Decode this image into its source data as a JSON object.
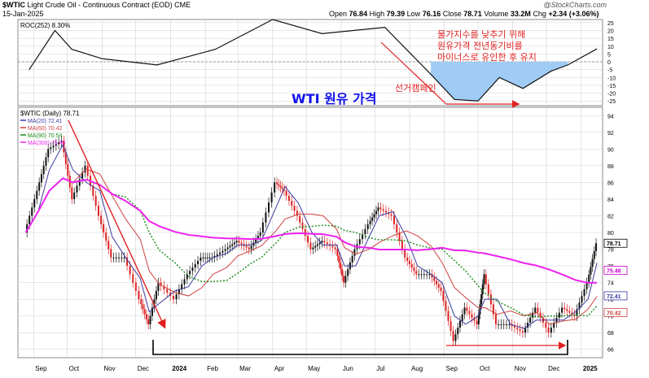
{
  "header": {
    "symbol": "$WTIC",
    "description": "Light Crude Oil - Continuous Contract (EOD) CME",
    "date": "15-Jan-2025",
    "ohlc": {
      "open_label": "Open",
      "open": "76.84",
      "high_label": "High",
      "high": "79.39",
      "low_label": "Low",
      "low": "76.16",
      "close_label": "Close",
      "close": "78.71",
      "volume_label": "Volume",
      "volume": "33.2M",
      "chg_label": "Chg",
      "chg": "+2.34 (+3.06%)"
    },
    "watermark": "@StockCharts.com"
  },
  "colors": {
    "price": "#111111",
    "up": "#111111",
    "down": "#dd2222",
    "ma20": "#3a3aa0",
    "ma60": "#d04040",
    "ma90": "#1a8a1a",
    "ma300": "#ee22ee",
    "roc": "#111111",
    "roc_fill": "#9fcbf5",
    "annotation_red": "#e02020",
    "annotation_blue": "#1010ee",
    "grid": "#d0d0d0"
  },
  "chart_data": [
    {
      "type": "line",
      "title": "ROC(252) 8.30%",
      "series": [
        {
          "name": "ROC(252)",
          "last_value": "8.30%",
          "x": [
            "2024-08-20",
            "2024-09-10",
            "2024-10-01",
            "2024-10-20",
            "2024-11-10",
            "2024-12-05",
            "2024-12-20",
            "2025-01-15",
            "2024-07-10",
            "2024-05-15",
            "2024-04-01",
            "2024-02-10",
            "2023-12-20",
            "2023-11-01",
            "2023-10-05",
            "2023-09-20",
            "2023-08-28"
          ],
          "y": [
            -8,
            -24,
            -25,
            -10,
            -17,
            -6,
            -2,
            8.3,
            22,
            18,
            27,
            8,
            -2,
            2,
            8,
            20,
            -5
          ]
        }
      ],
      "ylim": [
        -28,
        27
      ],
      "yticks": [
        "25",
        "20",
        "15",
        "10",
        "5",
        "0",
        "-5",
        "-10",
        "-15",
        "-20",
        "-25"
      ],
      "yticks_visible": [
        "25",
        "20",
        "15",
        "10",
        "5",
        "0",
        "-5",
        "-10",
        "-15",
        "-20",
        "-25"
      ]
    },
    {
      "type": "candlestick",
      "title": "$WTIC (Daily) 78.71",
      "legend": [
        {
          "label": "MA(20) 72.41",
          "color": "#3a3aa0"
        },
        {
          "label": "MA(60) 70.42",
          "color": "#d04040"
        },
        {
          "label": "MA(90) 70.54",
          "color": "#1a8a1a"
        },
        {
          "label": "MA(300) 75.48",
          "color": "#ee22ee"
        }
      ],
      "ylim": [
        65,
        95
      ],
      "yticks": [
        "94",
        "92",
        "90",
        "88",
        "86",
        "84",
        "82",
        "80",
        "78",
        "76",
        "74",
        "72",
        "70",
        "68",
        "66"
      ],
      "price_tags": [
        {
          "label": "78.71",
          "value": 78.71,
          "bg": "#ffffff",
          "fg": "#000000"
        },
        {
          "label": "75.48",
          "value": 75.48,
          "bg": "#ffffff",
          "fg": "#cc00cc"
        },
        {
          "label": "72.41",
          "value": 72.41,
          "bg": "#ffffff",
          "fg": "#3a3aa0"
        },
        {
          "label": "70.42",
          "value": 70.42,
          "bg": "#ffffff",
          "fg": "#d04040"
        }
      ],
      "xlabels": [
        "Sep",
        "Oct",
        "Nov",
        "Dec",
        "2024",
        "Feb",
        "Mar",
        "Apr",
        "May",
        "Jun",
        "Jul",
        "Aug",
        "Sep",
        "Oct",
        "Nov",
        "Dec",
        "2025"
      ],
      "close_series": {
        "dates": [
          "2023-08-25",
          "2023-09-05",
          "2023-09-15",
          "2023-09-27",
          "2023-10-06",
          "2023-10-18",
          "2023-10-30",
          "2023-11-10",
          "2023-11-22",
          "2023-12-05",
          "2023-12-13",
          "2023-12-22",
          "2024-01-05",
          "2024-01-17",
          "2024-01-29",
          "2024-02-08",
          "2024-02-20",
          "2024-03-01",
          "2024-03-12",
          "2024-03-22",
          "2024-04-04",
          "2024-04-12",
          "2024-04-24",
          "2024-05-06",
          "2024-05-16",
          "2024-05-28",
          "2024-06-04",
          "2024-06-14",
          "2024-06-26",
          "2024-07-05",
          "2024-07-17",
          "2024-07-29",
          "2024-08-08",
          "2024-08-20",
          "2024-08-30",
          "2024-09-10",
          "2024-09-20",
          "2024-10-01",
          "2024-10-07",
          "2024-10-18",
          "2024-10-30",
          "2024-11-11",
          "2024-11-22",
          "2024-12-04",
          "2024-12-16",
          "2024-12-27",
          "2025-01-07",
          "2025-01-15"
        ],
        "close": [
          80,
          85,
          90,
          91,
          84,
          88,
          82,
          77,
          77,
          72,
          69,
          74,
          72,
          75,
          77,
          77,
          78,
          79,
          78,
          80,
          86,
          85,
          82,
          78,
          79,
          78,
          74,
          78,
          81,
          83,
          82,
          77,
          75,
          75,
          73,
          67,
          71,
          69,
          75,
          69,
          69,
          68,
          71,
          68,
          71,
          70,
          74,
          78.71
        ]
      },
      "annotations": [
        {
          "text": "WTI 원유 가격",
          "color": "#1010ee"
        },
        {
          "text": "물가지수를 낮추기 위해",
          "color": "#e02020"
        },
        {
          "text": "원유가격 전년동기비를",
          "color": "#e02020"
        },
        {
          "text": "마이너스로 유인한 후 유지",
          "color": "#e02020"
        },
        {
          "text": "선거캠페인",
          "color": "#e02020"
        }
      ]
    }
  ]
}
